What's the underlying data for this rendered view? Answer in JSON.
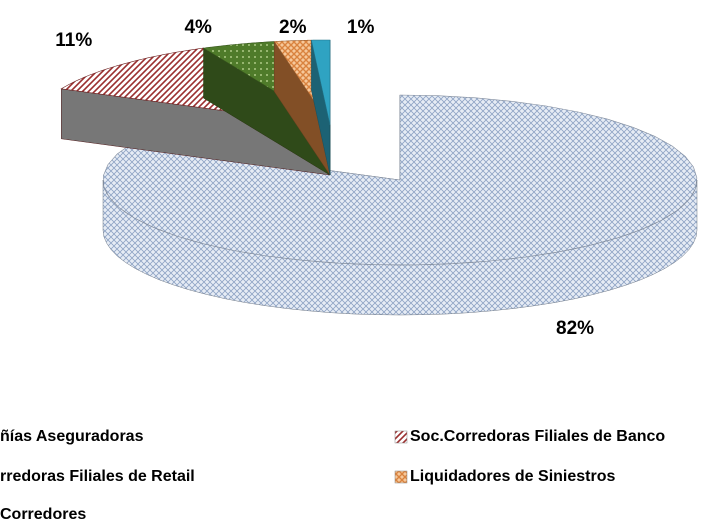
{
  "chart_data": {
    "type": "pie3d",
    "categories": [
      "ñías Aseguradoras",
      "Soc.Corredoras Filiales de Banco",
      "rredoras Filiales de Retail",
      "Liquidadores de Siniestros",
      "Corredores"
    ],
    "values": [
      82,
      11,
      4,
      2,
      1
    ],
    "value_labels": [
      "82%",
      "11%",
      "4%",
      "2%",
      "1%"
    ],
    "colors": [
      "#b8c8e0",
      "#9b2f2f",
      "#4f7b2a",
      "#d9833f",
      "#2fa3c2"
    ]
  }
}
